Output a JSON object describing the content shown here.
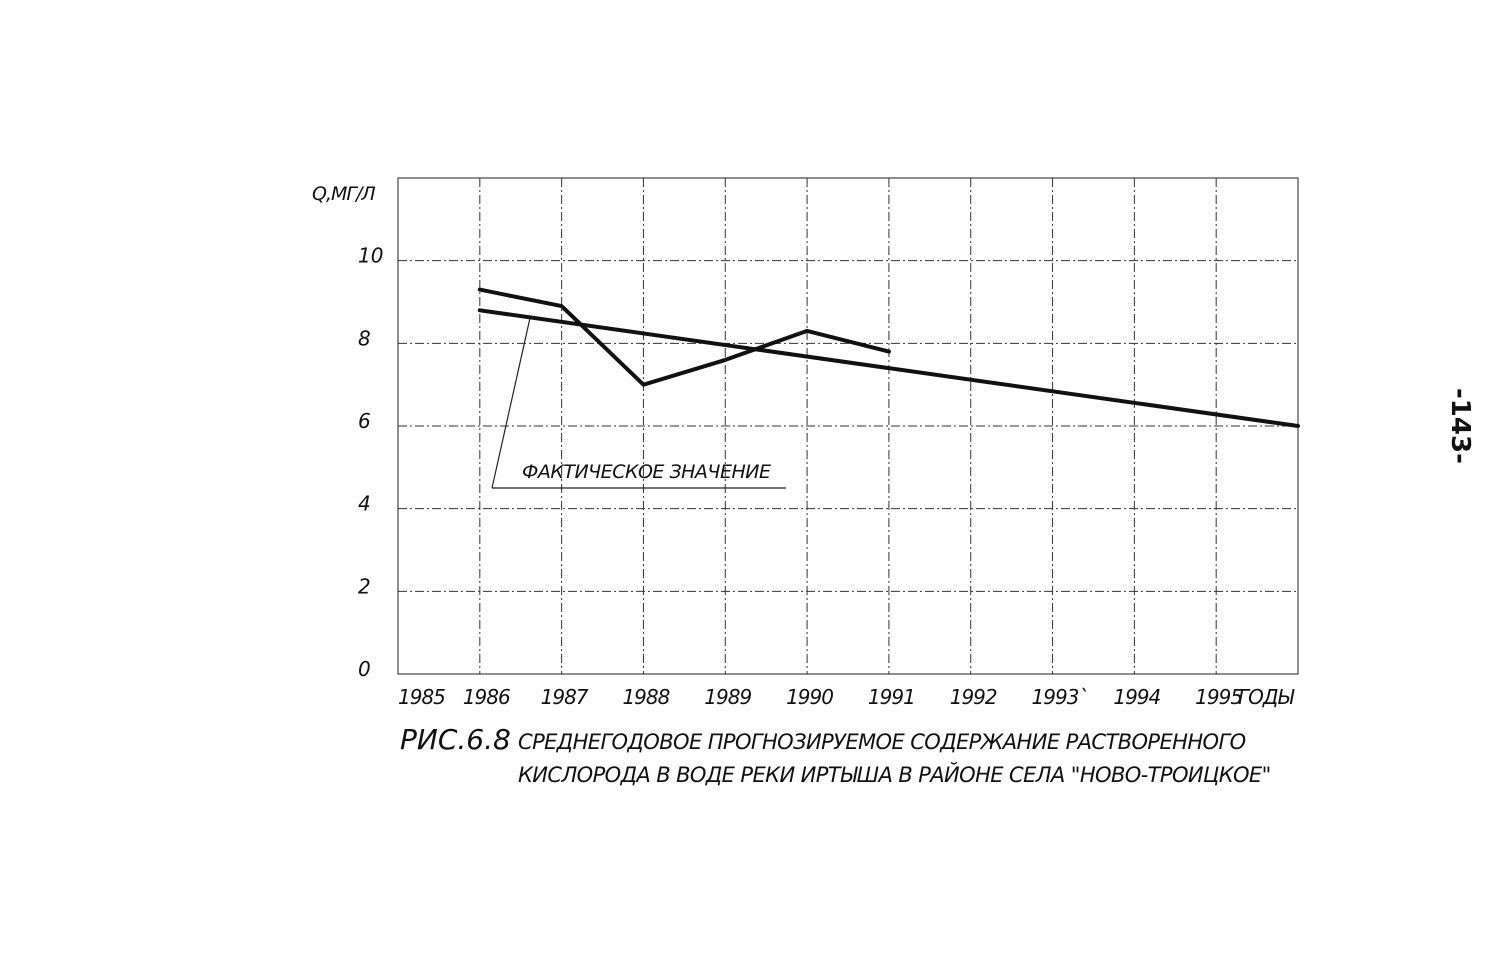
{
  "page_number": "-143-",
  "chart_data": {
    "type": "line",
    "ylabel": "Q,МГ/Л",
    "xlabel": "ГОДЫ",
    "x_tick_labels": [
      "1985",
      "1986",
      "1987",
      "1988",
      "1989",
      "1990",
      "1991",
      "1992",
      "1993`",
      "1994",
      "1995"
    ],
    "y_tick_labels": [
      "0",
      "2",
      "4",
      "6",
      "8",
      "10"
    ],
    "xlim": [
      1985,
      1996
    ],
    "ylim": [
      0,
      12
    ],
    "grid": true,
    "series": [
      {
        "name": "ФАКТИЧЕСКОЕ ЗНАЧЕНИЕ",
        "x": [
          1986,
          1987,
          1988,
          1989,
          1990,
          1991
        ],
        "y": [
          9.3,
          8.9,
          7.0,
          7.6,
          8.3,
          7.8
        ]
      },
      {
        "x": [
          1986,
          1996
        ],
        "y": [
          8.8,
          6.0
        ]
      }
    ],
    "caption": {
      "label": "РИС.6.8",
      "line1": "СРЕДНЕГОДОВОЕ ПРОГНОЗИРУЕМОЕ СОДЕРЖАНИЕ РАСТВОРЕННОГО",
      "line2": "КИСЛОРОДА В ВОДЕ РЕКИ ИРТЫША В РАЙОНЕ СЕЛА \"НОВО-ТРОИЦКОЕ\""
    }
  }
}
